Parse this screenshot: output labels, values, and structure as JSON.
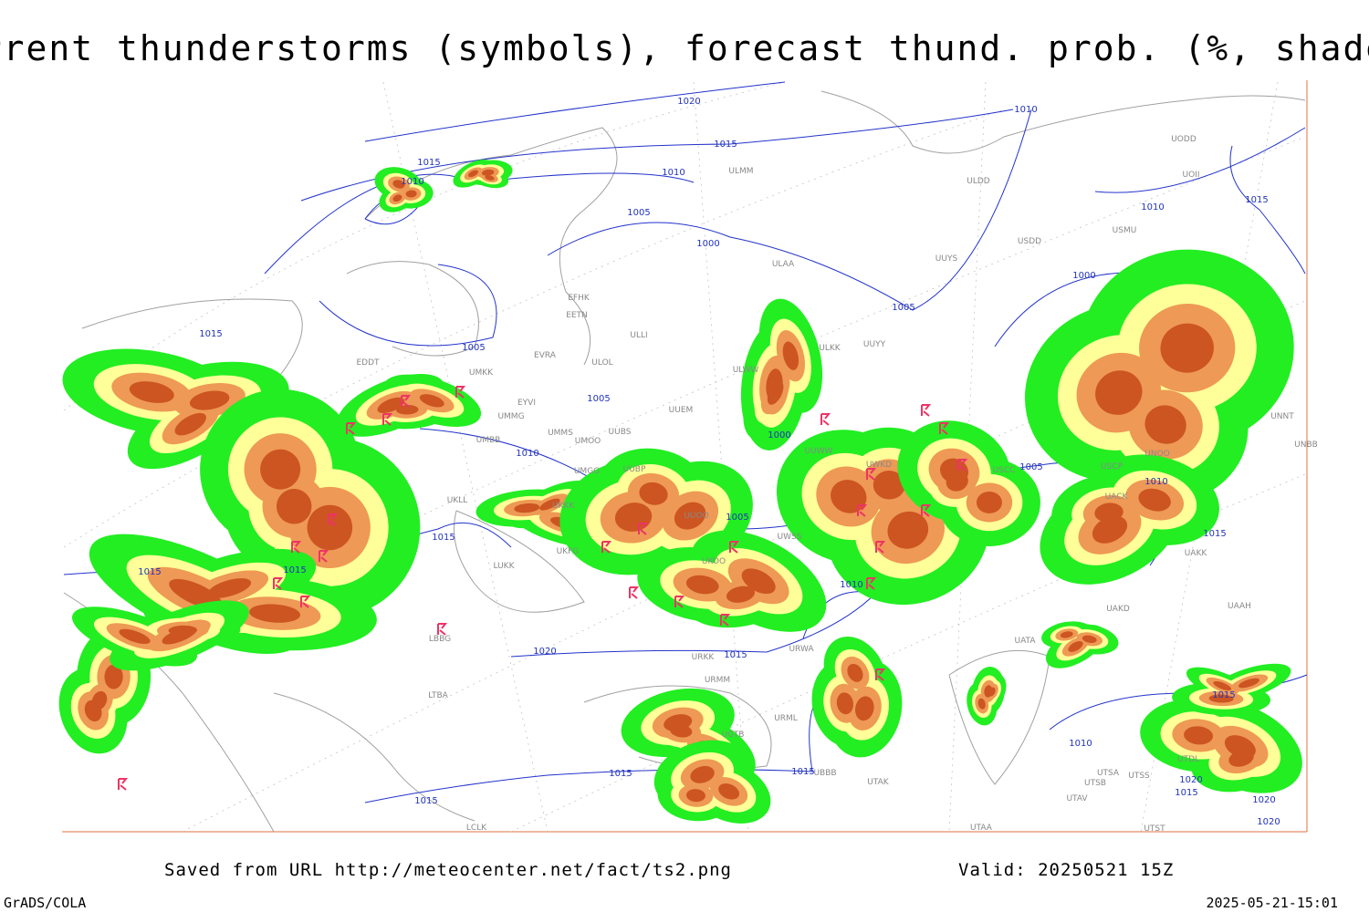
{
  "title": "Current thunderstorms (symbols), forecast thund. prob. (%, shaded)",
  "footer": {
    "saved": "Saved from URL http://meteocenter.net/fact/ts2.png",
    "valid": "Valid: 20250521 15Z",
    "software": "GrADS/COLA",
    "timestamp": "2025-05-21-15:01"
  },
  "isobar_labels": [
    "1020",
    "1015",
    "1015",
    "1010",
    "1010",
    "1005",
    "1000",
    "1010",
    "1015",
    "1010",
    "1000",
    "1005",
    "1005",
    "1015",
    "1005",
    "1010",
    "1000",
    "1005",
    "1010",
    "1005",
    "1015",
    "1015",
    "1015",
    "1010",
    "1015",
    "1020",
    "1015",
    "1015",
    "1010",
    "1015",
    "1015",
    "1015",
    "1020",
    "1015",
    "1020",
    "1020"
  ],
  "stations": [
    "ULMM",
    "ULDD",
    "UODD",
    "UOII",
    "USDD",
    "USMU",
    "UUYS",
    "ULAA",
    "EFHK",
    "EETN",
    "ULLI",
    "UUYY",
    "ULKK",
    "EVRA",
    "ULOL",
    "ULWW",
    "EDDT",
    "UMKK",
    "EYVI",
    "UUEM",
    "UMMG",
    "UMMS",
    "UMOO",
    "UUBS",
    "UMBB",
    "UUWW",
    "UMGG",
    "UUBP",
    "UWKD",
    "USCC",
    "UNOO",
    "USCP",
    "UACK",
    "UNNT",
    "UNBB",
    "UKLL",
    "UKKK",
    "UUOO",
    "UWSS",
    "UKFG",
    "UKOO",
    "UAKK",
    "LUKK",
    "UAKD",
    "UAAH",
    "LBBG",
    "URWA",
    "UATA",
    "UTAK",
    "UTSA",
    "UTSB",
    "UTSS",
    "UTAV",
    "UTAA",
    "UTST",
    "UTDL",
    "UBBB",
    "LTBA",
    "LCLK",
    "URMM",
    "URKK",
    "URML",
    "UGTB"
  ]
}
